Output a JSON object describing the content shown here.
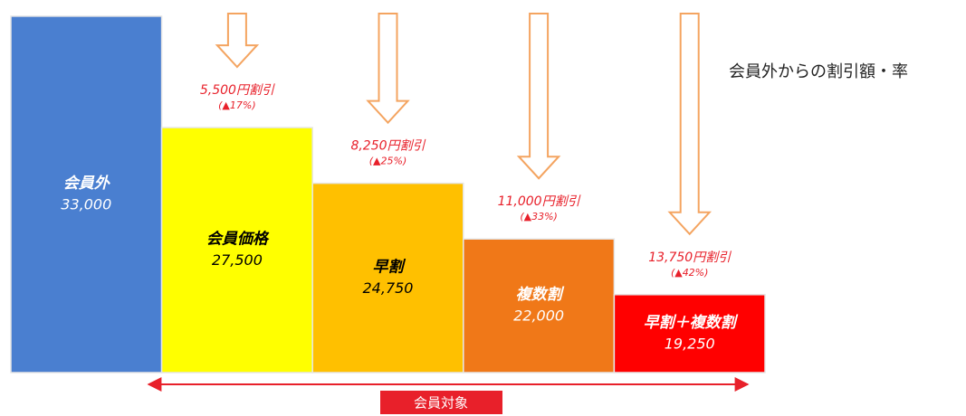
{
  "chart_data": {
    "type": "bar",
    "title": "会員外からの割引額・率",
    "categories": [
      "会員外",
      "会員価格",
      "早割",
      "複数割",
      "早割＋複数割"
    ],
    "values": [
      33000,
      27500,
      24750,
      22000,
      19250
    ],
    "value_labels": [
      "33,000",
      "27,500",
      "24,750",
      "22,000",
      "19,250"
    ],
    "colors": [
      "#4a7fd0",
      "#ffff00",
      "#ffc000",
      "#f07818",
      "#ff0000"
    ],
    "label_colors": [
      "#ffffff",
      "#000000",
      "#000000",
      "#ffffff",
      "#ffffff"
    ],
    "annotations": [
      null,
      {
        "text": "5,500円割引",
        "rate": "(▲17%)"
      },
      {
        "text": "8,250円割引",
        "rate": "(▲25%)"
      },
      {
        "text": "11,000円割引",
        "rate": "(▲33%)"
      },
      {
        "text": "13,750円割引",
        "rate": "(▲42%)"
      }
    ],
    "span_label": "会員対象",
    "ylim": [
      15400,
      33800
    ]
  }
}
